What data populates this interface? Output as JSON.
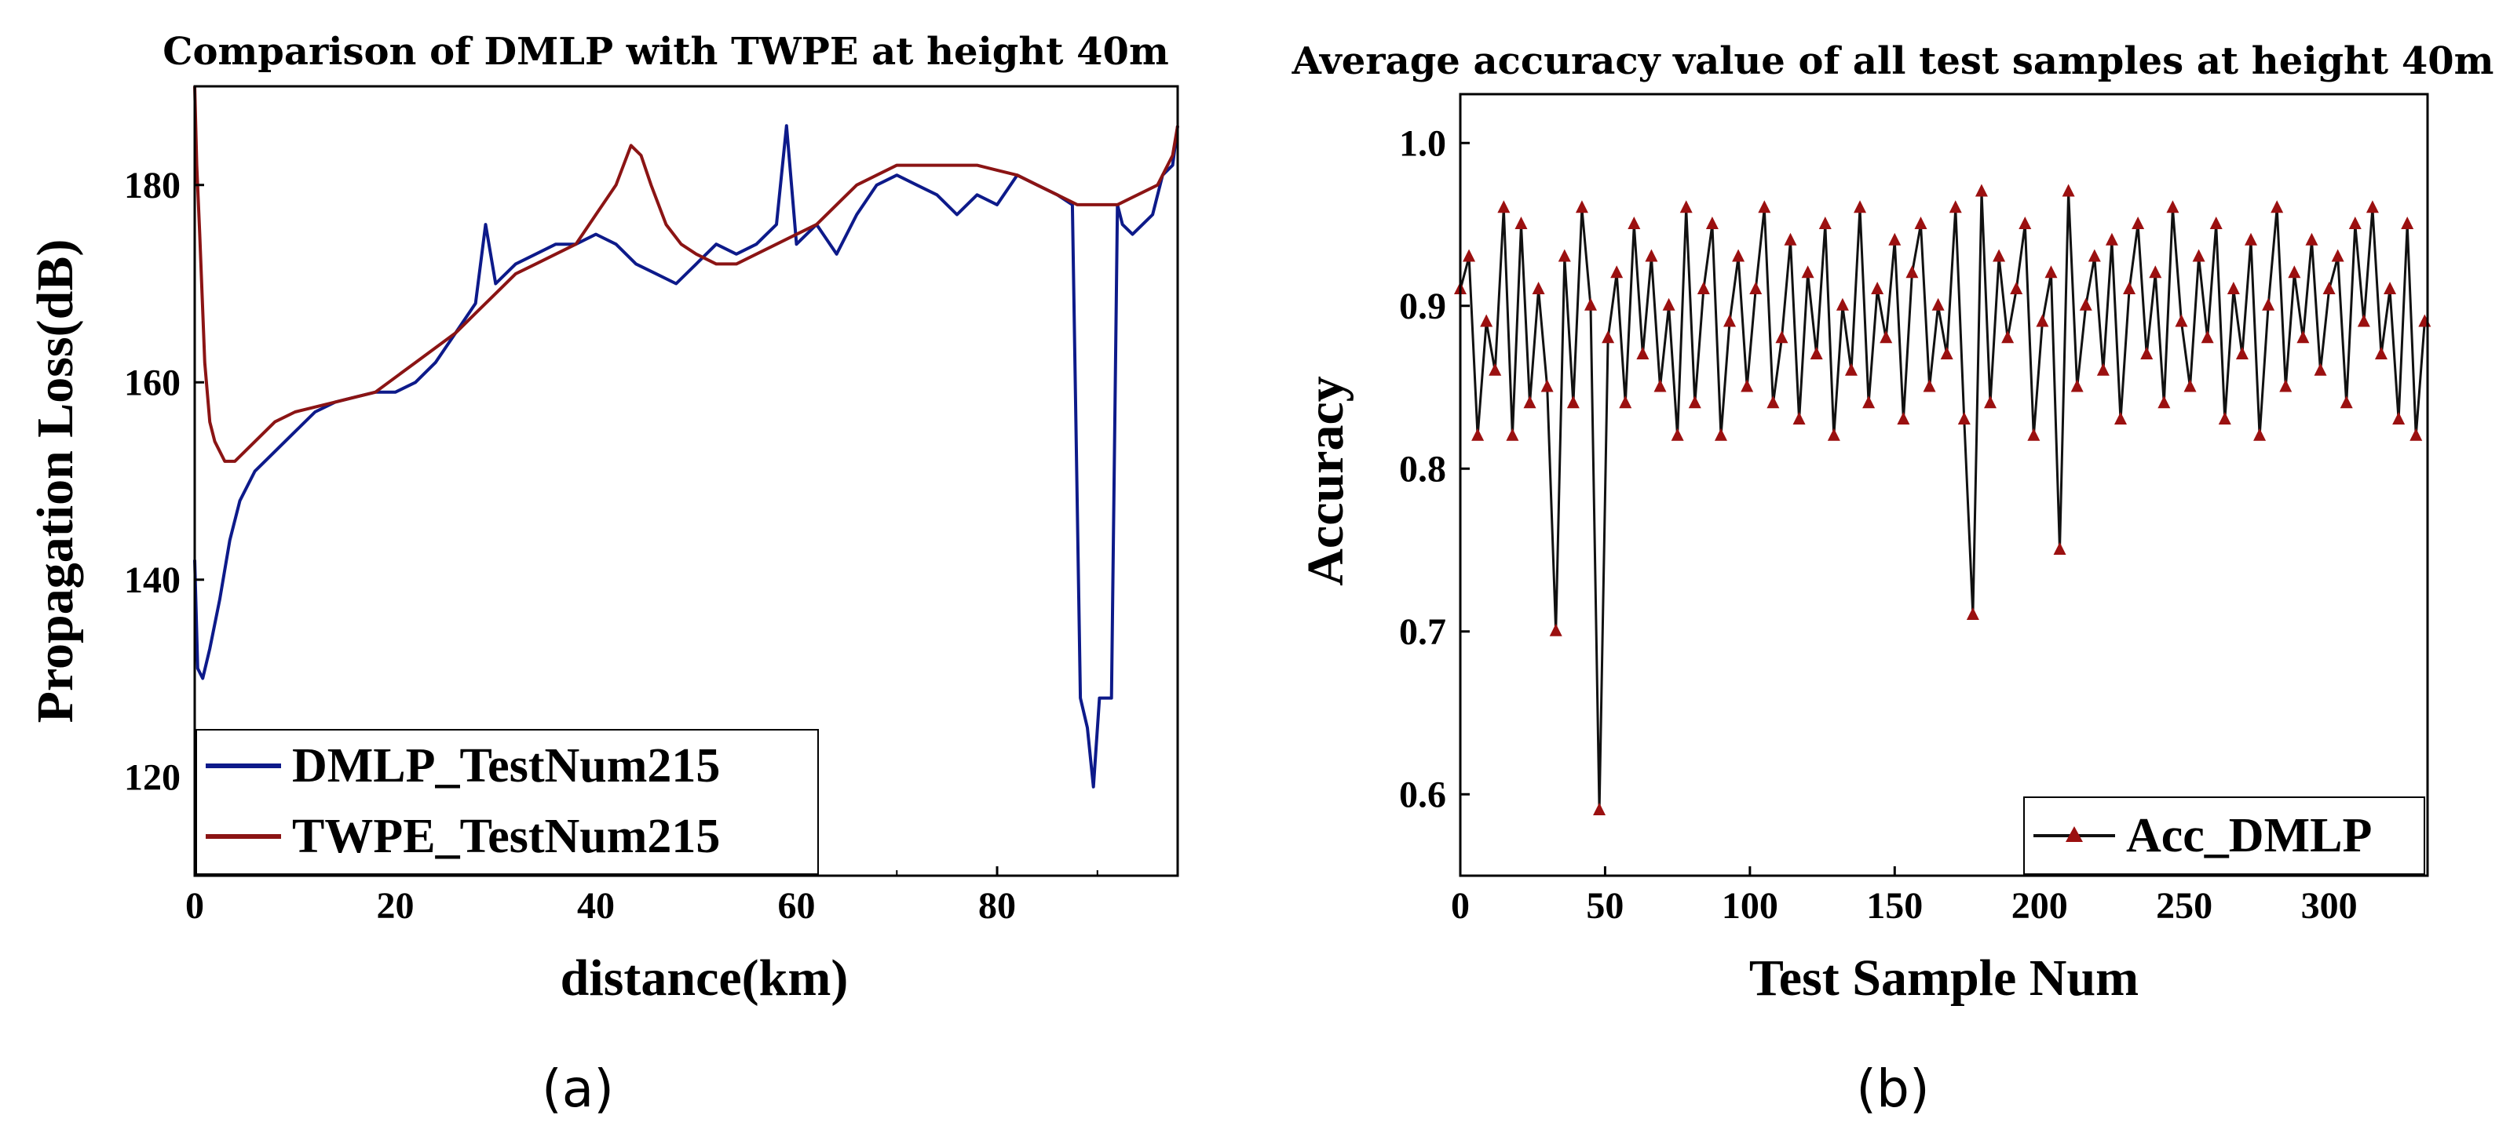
{
  "captions": [
    "(a)",
    "(b)"
  ],
  "colors": {
    "dmlp": "#0d1a8a",
    "twpe": "#8b1414",
    "acc_line": "#111111",
    "acc_marker": "#9b1010"
  },
  "chart_data": [
    {
      "type": "line",
      "title": "Comparison of DMLP with TWPE at height 40m",
      "xlabel": "distance(km)",
      "ylabel": "Propagation Loss(dB)",
      "xlim": [
        0,
        98
      ],
      "ylim": [
        110,
        190
      ],
      "xticks": [
        0,
        20,
        40,
        60,
        80
      ],
      "yticks": [
        120,
        140,
        160,
        180
      ],
      "legend_position": "bottom-left",
      "series": [
        {
          "name": "DMLP_TestNum215",
          "color": "#0d1a8a",
          "x": [
            0,
            0.3,
            0.8,
            1.5,
            2.5,
            3.5,
            4.5,
            6,
            8,
            10,
            12,
            14,
            16,
            18,
            20,
            22,
            24,
            26,
            28,
            29,
            30,
            32,
            34,
            36,
            38,
            40,
            42,
            44,
            46,
            48,
            50,
            52,
            54,
            56,
            58,
            59,
            60,
            62,
            64,
            66,
            68,
            70,
            72,
            74,
            76,
            78,
            80,
            82,
            84,
            86,
            87.5,
            88.3,
            89,
            89.6,
            90.2,
            90.8,
            91.4,
            92,
            92.5,
            93.5,
            94.5,
            95.5,
            96.5,
            97.5,
            98
          ],
          "y": [
            142,
            131,
            130,
            133,
            138,
            144,
            148,
            151,
            153,
            155,
            157,
            158,
            158.5,
            159,
            159,
            160,
            162,
            165,
            168,
            176,
            170,
            172,
            173,
            174,
            174,
            175,
            174,
            172,
            171,
            170,
            172,
            174,
            173,
            174,
            176,
            186,
            174,
            176,
            173,
            177,
            180,
            181,
            180,
            179,
            177,
            179,
            178,
            181,
            180,
            179,
            178,
            128,
            125,
            119,
            128,
            128,
            128,
            178,
            176,
            175,
            176,
            177,
            181,
            182,
            186
          ]
        },
        {
          "name": "TWPE_TestNum215",
          "color": "#8b1414",
          "x": [
            0,
            0.2,
            0.5,
            1,
            1.5,
            2,
            3,
            4,
            5,
            6,
            8,
            10,
            14,
            18,
            22,
            26,
            28,
            30,
            32,
            34,
            36,
            38,
            40,
            42,
            43.5,
            44.5,
            45.5,
            47,
            48.5,
            50,
            52,
            54,
            56,
            58,
            60,
            62,
            64,
            66,
            68,
            70,
            74,
            78,
            82,
            84,
            86,
            88,
            90,
            92,
            94,
            96,
            97.5,
            98
          ],
          "y": [
            190,
            182,
            175,
            162,
            156,
            154,
            152,
            152,
            153,
            154,
            156,
            157,
            158,
            159,
            162,
            165,
            167,
            169,
            171,
            172,
            173,
            174,
            177,
            180,
            184,
            183,
            180,
            176,
            174,
            173,
            172,
            172,
            173,
            174,
            175,
            176,
            178,
            180,
            181,
            182,
            182,
            182,
            181,
            180,
            179,
            178,
            178,
            178,
            179,
            180,
            183,
            186
          ]
        }
      ]
    },
    {
      "type": "line",
      "title": "Average accuracy value of all test samples at height 40m",
      "xlabel": "Test Sample Num",
      "ylabel": "Accuracy",
      "xlim": [
        0,
        334
      ],
      "ylim": [
        0.55,
        1.03
      ],
      "xticks": [
        0,
        50,
        100,
        150,
        200,
        250,
        300
      ],
      "yticks": [
        0.6,
        0.7,
        0.8,
        0.9,
        1.0
      ],
      "legend_position": "bottom-right",
      "series": [
        {
          "name": "Acc_DMLP",
          "color": "#111111",
          "marker": "triangle",
          "x": [
            0,
            3,
            6,
            9,
            12,
            15,
            18,
            21,
            24,
            27,
            30,
            33,
            36,
            39,
            42,
            45,
            48,
            51,
            54,
            57,
            60,
            63,
            66,
            69,
            72,
            75,
            78,
            81,
            84,
            87,
            90,
            93,
            96,
            99,
            102,
            105,
            108,
            111,
            114,
            117,
            120,
            123,
            126,
            129,
            132,
            135,
            138,
            141,
            144,
            147,
            150,
            153,
            156,
            159,
            162,
            165,
            168,
            171,
            174,
            177,
            180,
            183,
            186,
            189,
            192,
            195,
            198,
            201,
            204,
            207,
            210,
            213,
            216,
            219,
            222,
            225,
            228,
            231,
            234,
            237,
            240,
            243,
            246,
            249,
            252,
            255,
            258,
            261,
            264,
            267,
            270,
            273,
            276,
            279,
            282,
            285,
            288,
            291,
            294,
            297,
            300,
            303,
            306,
            309,
            312,
            315,
            318,
            321,
            324,
            327,
            330,
            333
          ],
          "y": [
            0.91,
            0.93,
            0.82,
            0.89,
            0.86,
            0.96,
            0.82,
            0.95,
            0.84,
            0.91,
            0.85,
            0.7,
            0.93,
            0.84,
            0.96,
            0.9,
            0.59,
            0.88,
            0.92,
            0.84,
            0.95,
            0.87,
            0.93,
            0.85,
            0.9,
            0.82,
            0.96,
            0.84,
            0.91,
            0.95,
            0.82,
            0.89,
            0.93,
            0.85,
            0.91,
            0.96,
            0.84,
            0.88,
            0.94,
            0.83,
            0.92,
            0.87,
            0.95,
            0.82,
            0.9,
            0.86,
            0.96,
            0.84,
            0.91,
            0.88,
            0.94,
            0.83,
            0.92,
            0.95,
            0.85,
            0.9,
            0.87,
            0.96,
            0.83,
            0.71,
            0.97,
            0.84,
            0.93,
            0.88,
            0.91,
            0.95,
            0.82,
            0.89,
            0.92,
            0.75,
            0.97,
            0.85,
            0.9,
            0.93,
            0.86,
            0.94,
            0.83,
            0.91,
            0.95,
            0.87,
            0.92,
            0.84,
            0.96,
            0.89,
            0.85,
            0.93,
            0.88,
            0.95,
            0.83,
            0.91,
            0.87,
            0.94,
            0.82,
            0.9,
            0.96,
            0.85,
            0.92,
            0.88,
            0.94,
            0.86,
            0.91,
            0.93,
            0.84,
            0.95,
            0.89,
            0.96,
            0.87,
            0.91,
            0.83,
            0.95,
            0.82,
            0.89
          ]
        }
      ]
    }
  ]
}
